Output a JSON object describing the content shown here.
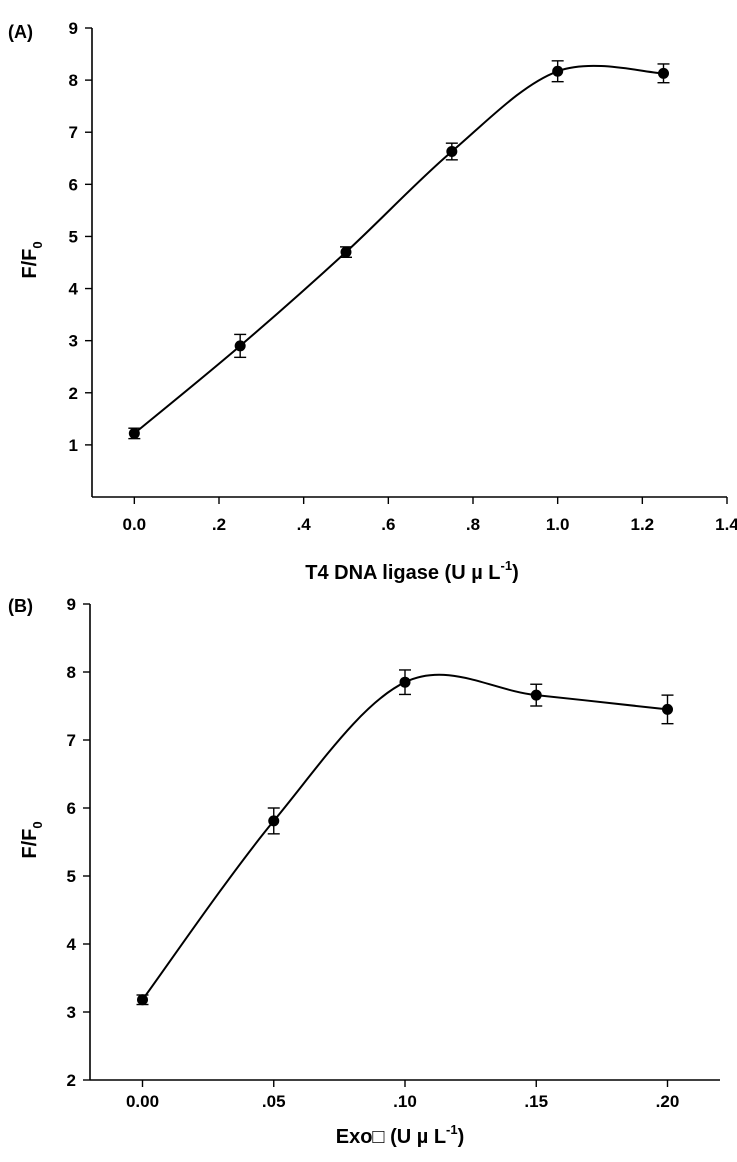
{
  "chart_data": [
    {
      "type": "line",
      "panel_label": "(A)",
      "xlabel": "T4 DNA ligase (U µ L",
      "xlabel_sup": "-1",
      "xlabel_end": ")",
      "ylabel": "F/F",
      "ylabel_sub": "0",
      "xlim": [
        -0.1,
        1.4
      ],
      "ylim": [
        0,
        9
      ],
      "x_ticks": [
        0.0,
        0.2,
        0.4,
        0.6,
        0.8,
        1.0,
        1.2,
        1.4
      ],
      "x_tick_labels": [
        "0.0",
        ".2",
        ".4",
        ".6",
        ".8",
        "1.0",
        "1.2",
        "1.4"
      ],
      "y_ticks": [
        1,
        2,
        3,
        4,
        5,
        6,
        7,
        8,
        9
      ],
      "y_tick_labels": [
        "1",
        "2",
        "3",
        "4",
        "5",
        "6",
        "7",
        "8",
        "9"
      ],
      "grid": false,
      "smooth": true,
      "series": [
        {
          "x": [
            0.0,
            0.25,
            0.5,
            0.75,
            1.0,
            1.25
          ],
          "y": [
            1.22,
            2.9,
            4.7,
            6.63,
            8.17,
            8.13
          ],
          "err": [
            0.1,
            0.22,
            0.1,
            0.16,
            0.2,
            0.18
          ]
        }
      ]
    },
    {
      "type": "line",
      "panel_label": "(B)",
      "xlabel": "Exo",
      "xlabel_glyph": "□",
      "xlabel_rest": " (U µ L",
      "xlabel_sup": "-1",
      "xlabel_end": ")",
      "ylabel": "F/F",
      "ylabel_sub": "0",
      "xlim": [
        -0.02,
        0.22
      ],
      "ylim": [
        2,
        9
      ],
      "x_ticks": [
        0.0,
        0.05,
        0.1,
        0.15,
        0.2
      ],
      "x_tick_labels": [
        "0.00",
        ".05",
        ".10",
        ".15",
        ".20"
      ],
      "y_ticks": [
        2,
        3,
        4,
        5,
        6,
        7,
        8,
        9
      ],
      "y_tick_labels": [
        "2",
        "3",
        "4",
        "5",
        "6",
        "7",
        "8",
        "9"
      ],
      "grid": false,
      "smooth": true,
      "series": [
        {
          "x": [
            0.0,
            0.05,
            0.1,
            0.15,
            0.2
          ],
          "y": [
            3.18,
            5.81,
            7.85,
            7.66,
            7.45
          ],
          "err": [
            0.07,
            0.19,
            0.18,
            0.16,
            0.21
          ]
        }
      ]
    }
  ]
}
